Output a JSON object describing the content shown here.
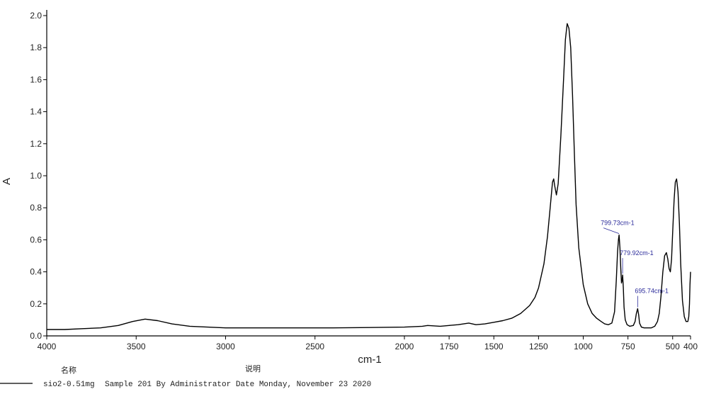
{
  "chart_data": {
    "type": "line",
    "xlabel": "cm-1",
    "ylabel": "A",
    "xlim": [
      4000,
      400
    ],
    "ylim": [
      0,
      2.0
    ],
    "x_reversed": true,
    "x_ticks": [
      4000,
      3500,
      3000,
      2500,
      2000,
      1750,
      1500,
      1250,
      1000,
      750,
      500,
      400
    ],
    "y_ticks": [
      "0.0",
      "0.2",
      "0.4",
      "0.6",
      "0.8",
      "1.0",
      "1.2",
      "1.4",
      "1.6",
      "1.8",
      "2.0"
    ],
    "grid": false,
    "series": [
      {
        "color": "#000000",
        "x": [
          4000,
          3900,
          3800,
          3700,
          3600,
          3520,
          3450,
          3380,
          3300,
          3200,
          3100,
          3000,
          2800,
          2600,
          2400,
          2200,
          2000,
          1900,
          1870,
          1800,
          1750,
          1700,
          1640,
          1600,
          1550,
          1500,
          1450,
          1400,
          1350,
          1300,
          1270,
          1250,
          1220,
          1200,
          1185,
          1172,
          1165,
          1160,
          1150,
          1140,
          1125,
          1110,
          1100,
          1090,
          1080,
          1070,
          1060,
          1050,
          1040,
          1025,
          1000,
          975,
          950,
          925,
          900,
          880,
          860,
          840,
          825,
          815,
          808,
          803,
          799.73,
          795,
          790,
          786,
          782,
          779.92,
          776,
          772,
          765,
          755,
          740,
          720,
          710,
          703,
          695.74,
          690,
          685,
          675,
          660,
          640,
          620,
          600,
          585,
          575,
          565,
          555,
          545,
          535,
          527,
          520,
          513,
          506,
          500,
          492,
          485,
          478,
          470,
          462,
          455,
          445,
          435,
          425,
          415,
          410,
          406,
          403,
          400
        ],
        "y": [
          0.04,
          0.04,
          0.045,
          0.05,
          0.065,
          0.09,
          0.105,
          0.095,
          0.075,
          0.06,
          0.055,
          0.05,
          0.05,
          0.05,
          0.05,
          0.052,
          0.055,
          0.06,
          0.065,
          0.06,
          0.065,
          0.07,
          0.08,
          0.07,
          0.075,
          0.085,
          0.095,
          0.11,
          0.14,
          0.19,
          0.24,
          0.3,
          0.45,
          0.62,
          0.8,
          0.96,
          0.98,
          0.94,
          0.88,
          0.95,
          1.25,
          1.6,
          1.85,
          1.95,
          1.92,
          1.8,
          1.5,
          1.15,
          0.82,
          0.55,
          0.32,
          0.2,
          0.14,
          0.11,
          0.09,
          0.075,
          0.07,
          0.08,
          0.15,
          0.35,
          0.53,
          0.6,
          0.63,
          0.55,
          0.42,
          0.33,
          0.35,
          0.38,
          0.3,
          0.18,
          0.1,
          0.07,
          0.06,
          0.065,
          0.09,
          0.14,
          0.17,
          0.13,
          0.08,
          0.055,
          0.05,
          0.05,
          0.05,
          0.06,
          0.09,
          0.14,
          0.25,
          0.4,
          0.5,
          0.52,
          0.48,
          0.42,
          0.4,
          0.48,
          0.65,
          0.85,
          0.96,
          0.98,
          0.9,
          0.7,
          0.45,
          0.22,
          0.12,
          0.09,
          0.09,
          0.12,
          0.2,
          0.32,
          0.4
        ]
      }
    ],
    "annotations": [
      {
        "label": "799.73cm-1",
        "x": 799.73,
        "y": 0.63
      },
      {
        "label": "779.92cm-1",
        "x": 779.92,
        "y": 0.38
      },
      {
        "label": "695.74cm-1",
        "x": 695.74,
        "y": 0.17
      }
    ]
  },
  "footer": {
    "name_header": "名称",
    "desc_header": "说明",
    "legend_name": "sio2-0.51mg",
    "legend_desc": "Sample 201 By Administrator Date Monday, November 23 2020"
  }
}
